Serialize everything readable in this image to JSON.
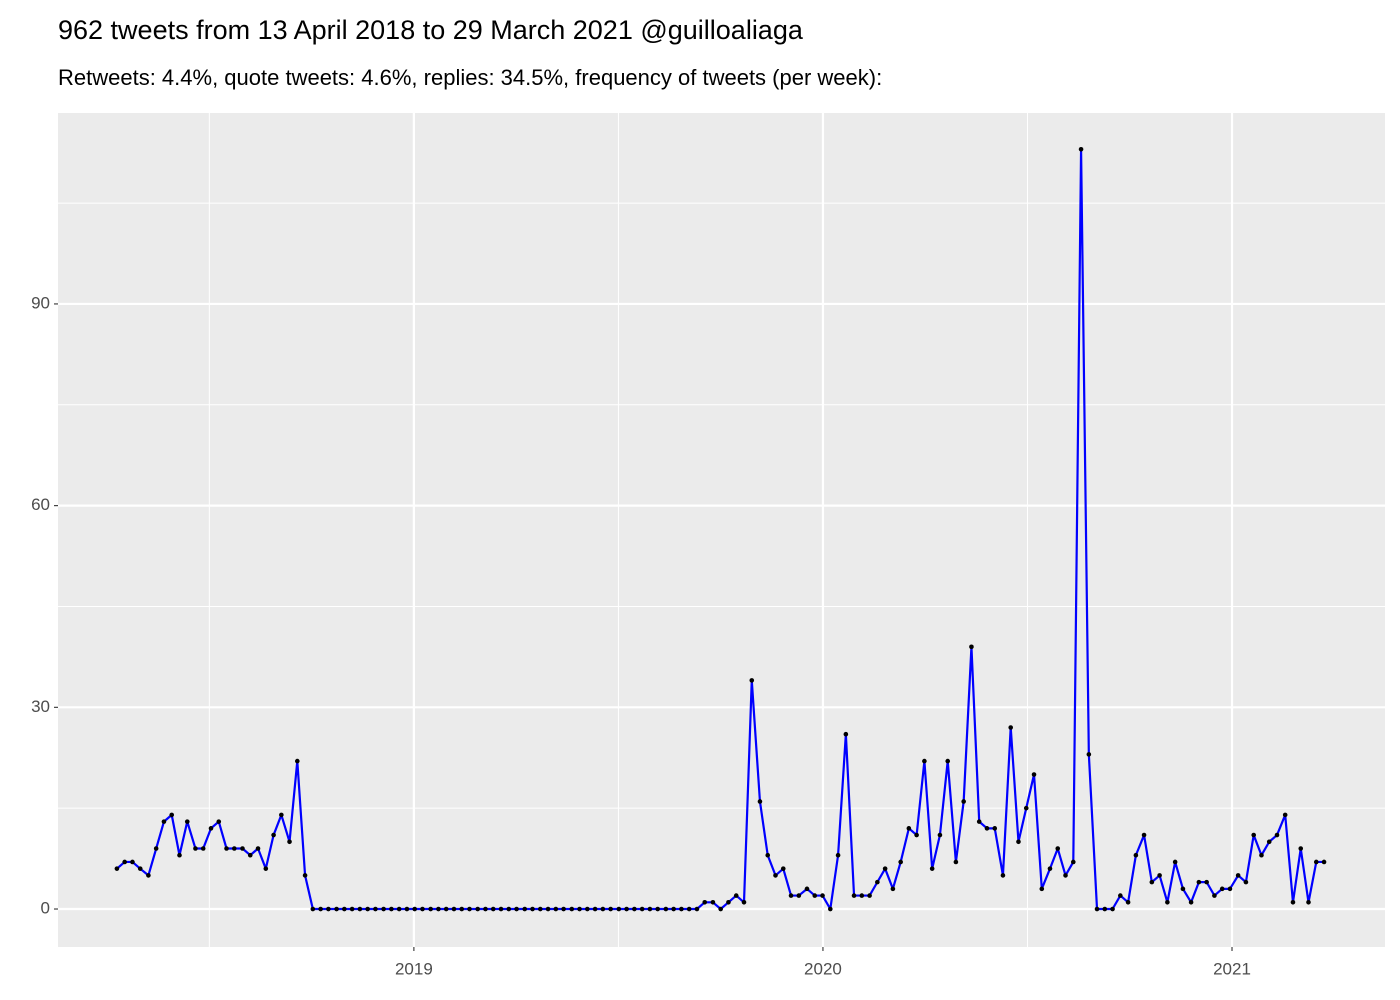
{
  "chart_data": {
    "type": "line",
    "title": "962 tweets from 13 April 2018 to 29 March 2021 @guilloaliaga",
    "subtitle": "Retweets: 4.4%, quote tweets: 4.6%, replies: 34.5%, frequency of tweets (per week):",
    "x": [
      2018.274,
      2018.293,
      2018.312,
      2018.331,
      2018.351,
      2018.37,
      2018.389,
      2018.408,
      2018.427,
      2018.446,
      2018.466,
      2018.485,
      2018.504,
      2018.523,
      2018.542,
      2018.561,
      2018.581,
      2018.6,
      2018.619,
      2018.638,
      2018.657,
      2018.676,
      2018.696,
      2018.715,
      2018.734,
      2018.753,
      2018.772,
      2018.791,
      2018.811,
      2018.83,
      2018.849,
      2018.868,
      2018.887,
      2018.906,
      2018.926,
      2018.945,
      2018.964,
      2018.983,
      2019.002,
      2019.021,
      2019.041,
      2019.06,
      2019.079,
      2019.098,
      2019.117,
      2019.136,
      2019.156,
      2019.175,
      2019.194,
      2019.213,
      2019.232,
      2019.251,
      2019.271,
      2019.29,
      2019.309,
      2019.328,
      2019.347,
      2019.366,
      2019.386,
      2019.405,
      2019.424,
      2019.443,
      2019.462,
      2019.481,
      2019.501,
      2019.52,
      2019.539,
      2019.558,
      2019.577,
      2019.596,
      2019.616,
      2019.635,
      2019.654,
      2019.673,
      2019.692,
      2019.711,
      2019.731,
      2019.75,
      2019.769,
      2019.788,
      2019.807,
      2019.826,
      2019.846,
      2019.865,
      2019.884,
      2019.903,
      2019.922,
      2019.941,
      2019.961,
      2019.98,
      2019.999,
      2020.018,
      2020.037,
      2020.056,
      2020.076,
      2020.095,
      2020.114,
      2020.133,
      2020.152,
      2020.171,
      2020.19,
      2020.21,
      2020.229,
      2020.248,
      2020.267,
      2020.286,
      2020.305,
      2020.325,
      2020.344,
      2020.363,
      2020.382,
      2020.401,
      2020.42,
      2020.44,
      2020.459,
      2020.478,
      2020.497,
      2020.516,
      2020.535,
      2020.555,
      2020.574,
      2020.593,
      2020.612,
      2020.631,
      2020.65,
      2020.67,
      2020.689,
      2020.708,
      2020.727,
      2020.746,
      2020.765,
      2020.785,
      2020.804,
      2020.823,
      2020.842,
      2020.861,
      2020.88,
      2020.9,
      2020.919,
      2020.938,
      2020.957,
      2020.976,
      2020.995,
      2021.015,
      2021.034,
      2021.053,
      2021.072,
      2021.091,
      2021.11,
      2021.13,
      2021.149,
      2021.168,
      2021.187,
      2021.206,
      2021.225
    ],
    "values": [
      6,
      7,
      7,
      6,
      5,
      9,
      13,
      14,
      8,
      13,
      9,
      9,
      12,
      13,
      9,
      9,
      9,
      8,
      9,
      6,
      11,
      14,
      10,
      22,
      5,
      0,
      0,
      0,
      0,
      0,
      0,
      0,
      0,
      0,
      0,
      0,
      0,
      0,
      0,
      0,
      0,
      0,
      0,
      0,
      0,
      0,
      0,
      0,
      0,
      0,
      0,
      0,
      0,
      0,
      0,
      0,
      0,
      0,
      0,
      0,
      0,
      0,
      0,
      0,
      0,
      0,
      0,
      0,
      0,
      0,
      0,
      0,
      0,
      0,
      0,
      1,
      1,
      0,
      1,
      2,
      1,
      34,
      16,
      8,
      5,
      6,
      2,
      2,
      3,
      2,
      2,
      0,
      8,
      26,
      2,
      2,
      2,
      4,
      6,
      3,
      7,
      12,
      11,
      22,
      6,
      11,
      22,
      7,
      16,
      39,
      13,
      12,
      12,
      5,
      27,
      10,
      15,
      20,
      3,
      6,
      9,
      5,
      7,
      113,
      23,
      0,
      0,
      0,
      2,
      1,
      8,
      11,
      4,
      5,
      1,
      7,
      3,
      1,
      4,
      4,
      2,
      3,
      3,
      5,
      4,
      11,
      8,
      10,
      11,
      14,
      1,
      9,
      1,
      7,
      7
    ],
    "color": "blue",
    "point_color": "black",
    "xlim": [
      2018.13,
      2021.374
    ],
    "xticks": [
      2019,
      2020,
      2021
    ],
    "ylim": [
      -5.65,
      118.4
    ],
    "yticks": [
      0,
      30,
      60,
      90
    ],
    "grid": true
  }
}
